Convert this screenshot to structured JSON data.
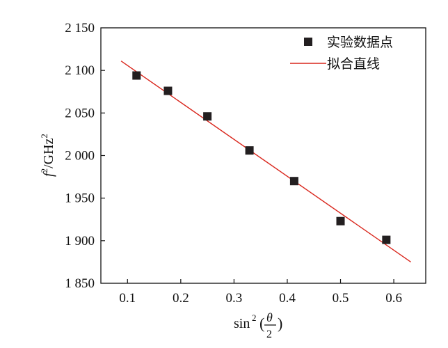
{
  "chart_data": {
    "type": "scatter",
    "title": "",
    "xlabel": "sin² (θ/2)",
    "ylabel": "f²/GHz²",
    "xlim": [
      0.05,
      0.66
    ],
    "ylim": [
      1850,
      2150
    ],
    "x_ticks": [
      0.1,
      0.2,
      0.3,
      0.4,
      0.5,
      0.6
    ],
    "x_tick_labels": [
      "0.1",
      "0.2",
      "0.3",
      "0.4",
      "0.5",
      "0.6"
    ],
    "y_ticks": [
      1850,
      1900,
      1950,
      2000,
      2050,
      2100,
      2150
    ],
    "y_tick_labels": [
      "1 850",
      "1 900",
      "1 950",
      "2 000",
      "2 050",
      "2 100",
      "2 150"
    ],
    "grid": false,
    "legend_position": "top-right",
    "series": [
      {
        "name": "实验数据点",
        "kind": "scatter",
        "marker": "square",
        "color": "#231f20",
        "points": [
          {
            "x": 0.117,
            "y": 2094
          },
          {
            "x": 0.176,
            "y": 2076
          },
          {
            "x": 0.25,
            "y": 2046
          },
          {
            "x": 0.329,
            "y": 2006
          },
          {
            "x": 0.413,
            "y": 1970
          },
          {
            "x": 0.5,
            "y": 1923
          },
          {
            "x": 0.586,
            "y": 1901
          }
        ]
      },
      {
        "name": "拟合直线",
        "kind": "line",
        "color": "#d9261c",
        "points": [
          {
            "x": 0.088,
            "y": 2111
          },
          {
            "x": 0.632,
            "y": 1875
          }
        ]
      }
    ]
  }
}
